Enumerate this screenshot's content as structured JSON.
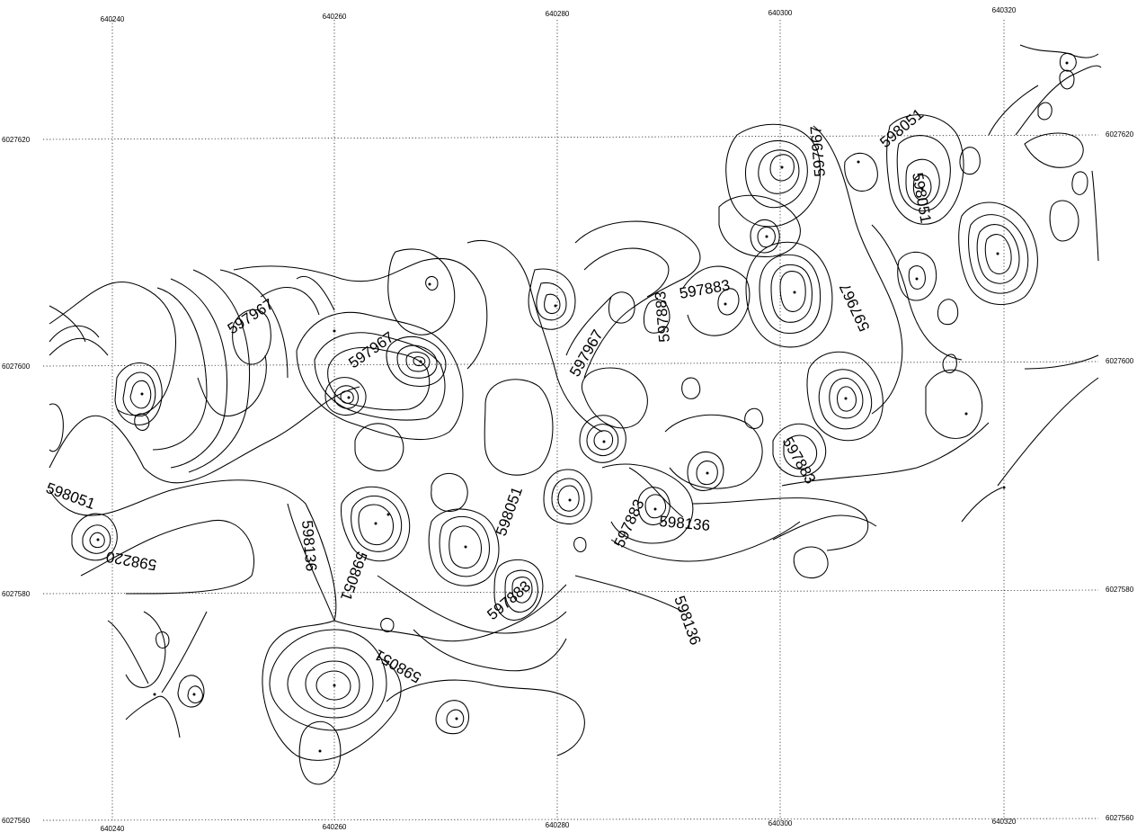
{
  "map": {
    "grid": {
      "easting": [
        {
          "value": "640240",
          "top": "640240",
          "bottom": "640240"
        },
        {
          "value": "640260",
          "top": "640260",
          "bottom": "640260"
        },
        {
          "value": "640280",
          "top": "640280",
          "bottom": "640280"
        },
        {
          "value": "640300",
          "top": "640300",
          "bottom": "640300"
        },
        {
          "value": "640320",
          "top": "640320",
          "bottom": "640320"
        }
      ],
      "northing": [
        {
          "value": "6027620",
          "left": "6027620",
          "right": "6027620"
        },
        {
          "value": "6027600",
          "left": "6027600",
          "right": "6027600"
        },
        {
          "value": "6027580",
          "left": "6027580",
          "right": "6027580"
        },
        {
          "value": "6027560",
          "left": "6027560",
          "right": "6027560"
        }
      ]
    },
    "contour_labels": [
      "597967",
      "597967",
      "597967",
      "597967",
      "597967",
      "598051",
      "598051",
      "598051",
      "598051",
      "598051",
      "598051",
      "598136",
      "598136",
      "598136",
      "598220",
      "597883",
      "597883",
      "597883",
      "597883",
      "597883"
    ]
  }
}
